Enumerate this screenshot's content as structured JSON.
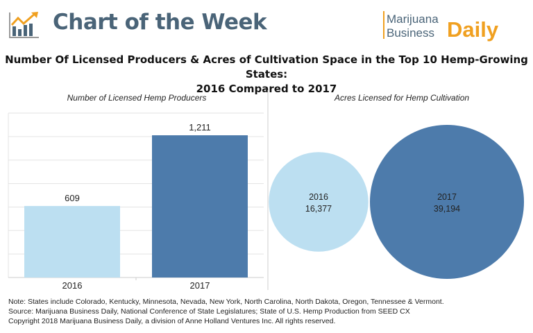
{
  "header": {
    "badge_title": "Chart of the Week",
    "logo_lines": [
      "Marijuana",
      "Business",
      "Daily"
    ]
  },
  "title_lines": [
    "Number Of Licensed Producers & Acres of Cultivation Space in the Top 10 Hemp-Growing States:",
    "2016 Compared to 2017"
  ],
  "colors": {
    "light": "#bcdff1",
    "dark": "#4d7bab",
    "header": "#4a6478",
    "brand": "#f0a020"
  },
  "chart_data": [
    {
      "type": "bar",
      "title": "Number of Licensed Hemp Producers",
      "categories": [
        "2016",
        "2017"
      ],
      "values": [
        609,
        1211
      ],
      "data_labels": [
        "609",
        "1,211"
      ],
      "ylim": [
        0,
        1400
      ],
      "grid": true,
      "colors": [
        "#bcdff1",
        "#4d7bab"
      ]
    },
    {
      "type": "bubble",
      "title": "Acres Licensed for Hemp Cultivation",
      "categories": [
        "2016",
        "2017"
      ],
      "values": [
        16377,
        39194
      ],
      "data_labels": [
        "16,377",
        "39,194"
      ],
      "colors": [
        "#bcdff1",
        "#4d7bab"
      ]
    }
  ],
  "notes": [
    "Note: States include Colorado, Kentucky, Minnesota, Nevada, New York, North Carolina, North Dakota, Oregon, Tennessee & Vermont.",
    "Source: Marijuana Business Daily, National Conference of State Legislatures; State of U.S. Hemp Production from SEED CX",
    "Copyright 2018 Marijuana Business Daily, a division of Anne Holland Ventures Inc. All rights reserved."
  ]
}
